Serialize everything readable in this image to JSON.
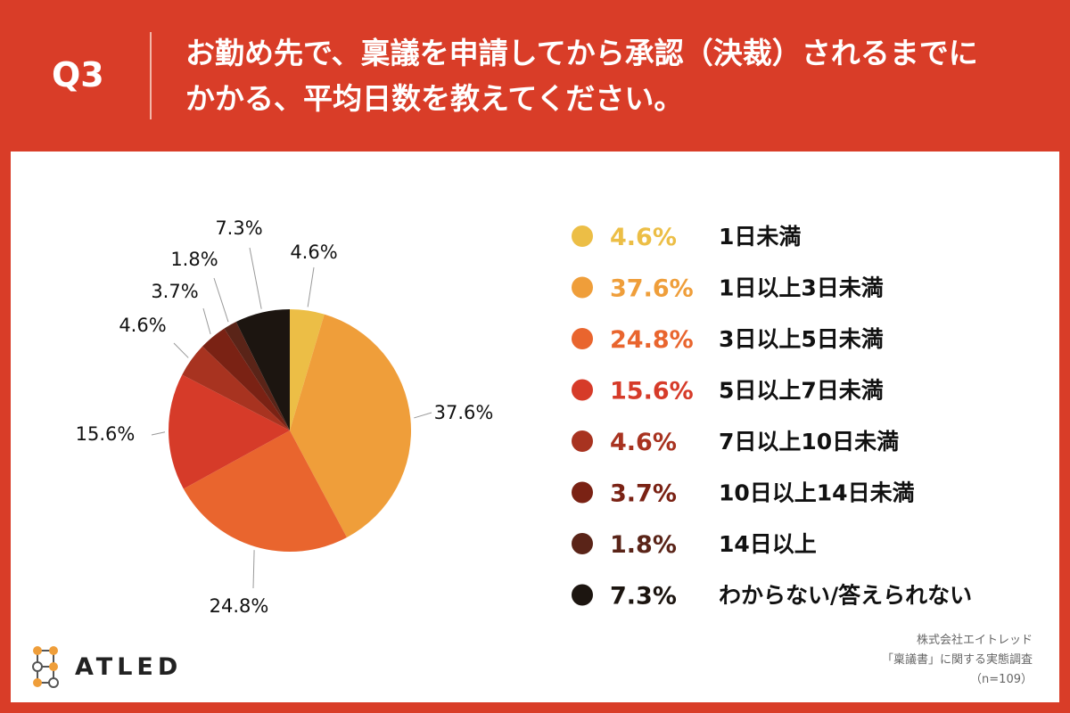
{
  "header": {
    "q_label": "Q3",
    "question_line1": "お勤め先で、稟議を申請してから承認（決裁）されるまでに",
    "question_line2": "かかる、平均日数を教えてください。"
  },
  "chart_data": {
    "type": "pie",
    "title": "",
    "slices": [
      {
        "label": "1日未満",
        "value": 4.6,
        "text": "4.6%",
        "color": "#ecbe46"
      },
      {
        "label": "1日以上3日未満",
        "value": 37.6,
        "text": "37.6%",
        "color": "#ef9e3a"
      },
      {
        "label": "3日以上5日未満",
        "value": 24.8,
        "text": "24.8%",
        "color": "#e9652e"
      },
      {
        "label": "5日以上7日未満",
        "value": 15.6,
        "text": "15.6%",
        "color": "#d63b29"
      },
      {
        "label": "7日以上10日未満",
        "value": 4.6,
        "text": "4.6%",
        "color": "#a83320"
      },
      {
        "label": "10日以上14日未満",
        "value": 3.7,
        "text": "3.7%",
        "color": "#7a2214"
      },
      {
        "label": "14日以上",
        "value": 1.8,
        "text": "1.8%",
        "color": "#5a2418"
      },
      {
        "label": "わからない/答えられない",
        "value": 7.3,
        "text": "7.3%",
        "color": "#1c1510"
      }
    ],
    "legend_position": "right",
    "start_angle": "top",
    "direction": "clockwise"
  },
  "logo": {
    "text": "ATLED",
    "icon": "network-nodes-icon",
    "node_color": "#ef9e3a"
  },
  "source": {
    "line1": "株式会社エイトレッド",
    "line2": "「稟議書」に関する実態調査",
    "line3": "（n=109）"
  }
}
